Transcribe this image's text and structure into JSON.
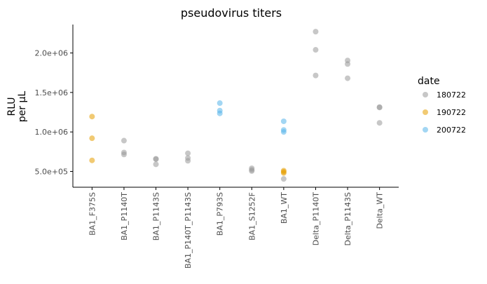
{
  "chart_data": {
    "type": "scatter",
    "title": "pseudovirus titers",
    "ylabel_lines": [
      "RLU",
      "per µL"
    ],
    "xlabel": "",
    "categories": [
      "BA1_F375S",
      "BA1_P1140T",
      "BA1_P1143S",
      "BA1_P140T_P1143S",
      "BA1_P793S",
      "BA1_S1252F",
      "BA1_WT",
      "Delta_P1140T",
      "Delta_P1143S",
      "Delta_WT"
    ],
    "ylim": [
      300000,
      2360000
    ],
    "yticks": [
      500000,
      1000000,
      1500000,
      2000000
    ],
    "ytick_labels": [
      "5.0e+05",
      "1.0e+06",
      "1.5e+06",
      "2.0e+06"
    ],
    "legend_title": "date",
    "legend_position": "right",
    "series": [
      {
        "name": "180722",
        "color": "#999999",
        "points": [
          {
            "x": "BA1_P1140T",
            "y": 890000
          },
          {
            "x": "BA1_P1140T",
            "y": 740000
          },
          {
            "x": "BA1_P1140T",
            "y": 715000
          },
          {
            "x": "BA1_P1143S",
            "y": 660000
          },
          {
            "x": "BA1_P1143S",
            "y": 655000
          },
          {
            "x": "BA1_P1143S",
            "y": 590000
          },
          {
            "x": "BA1_P140T_P1143S",
            "y": 730000
          },
          {
            "x": "BA1_P140T_P1143S",
            "y": 670000
          },
          {
            "x": "BA1_P140T_P1143S",
            "y": 635000
          },
          {
            "x": "BA1_S1252F",
            "y": 540000
          },
          {
            "x": "BA1_S1252F",
            "y": 520000
          },
          {
            "x": "BA1_S1252F",
            "y": 505000
          },
          {
            "x": "BA1_WT",
            "y": 405000
          },
          {
            "x": "Delta_P1140T",
            "y": 2270000
          },
          {
            "x": "Delta_P1140T",
            "y": 2040000
          },
          {
            "x": "Delta_P1140T",
            "y": 1715000
          },
          {
            "x": "Delta_P1143S",
            "y": 1905000
          },
          {
            "x": "Delta_P1143S",
            "y": 1860000
          },
          {
            "x": "Delta_P1143S",
            "y": 1680000
          },
          {
            "x": "Delta_WT",
            "y": 1315000
          },
          {
            "x": "Delta_WT",
            "y": 1310000
          },
          {
            "x": "Delta_WT",
            "y": 1115000
          }
        ]
      },
      {
        "name": "190722",
        "color": "#E69F00",
        "points": [
          {
            "x": "BA1_F375S",
            "y": 1195000
          },
          {
            "x": "BA1_F375S",
            "y": 920000
          },
          {
            "x": "BA1_F375S",
            "y": 640000
          },
          {
            "x": "BA1_WT",
            "y": 510000
          },
          {
            "x": "BA1_WT",
            "y": 495000
          },
          {
            "x": "BA1_WT",
            "y": 480000
          }
        ]
      },
      {
        "name": "200722",
        "color": "#56B4E9",
        "points": [
          {
            "x": "BA1_P793S",
            "y": 1365000
          },
          {
            "x": "BA1_P793S",
            "y": 1270000
          },
          {
            "x": "BA1_P793S",
            "y": 1235000
          },
          {
            "x": "BA1_WT",
            "y": 1135000
          },
          {
            "x": "BA1_WT",
            "y": 1025000
          },
          {
            "x": "BA1_WT",
            "y": 1000000
          }
        ]
      }
    ]
  }
}
